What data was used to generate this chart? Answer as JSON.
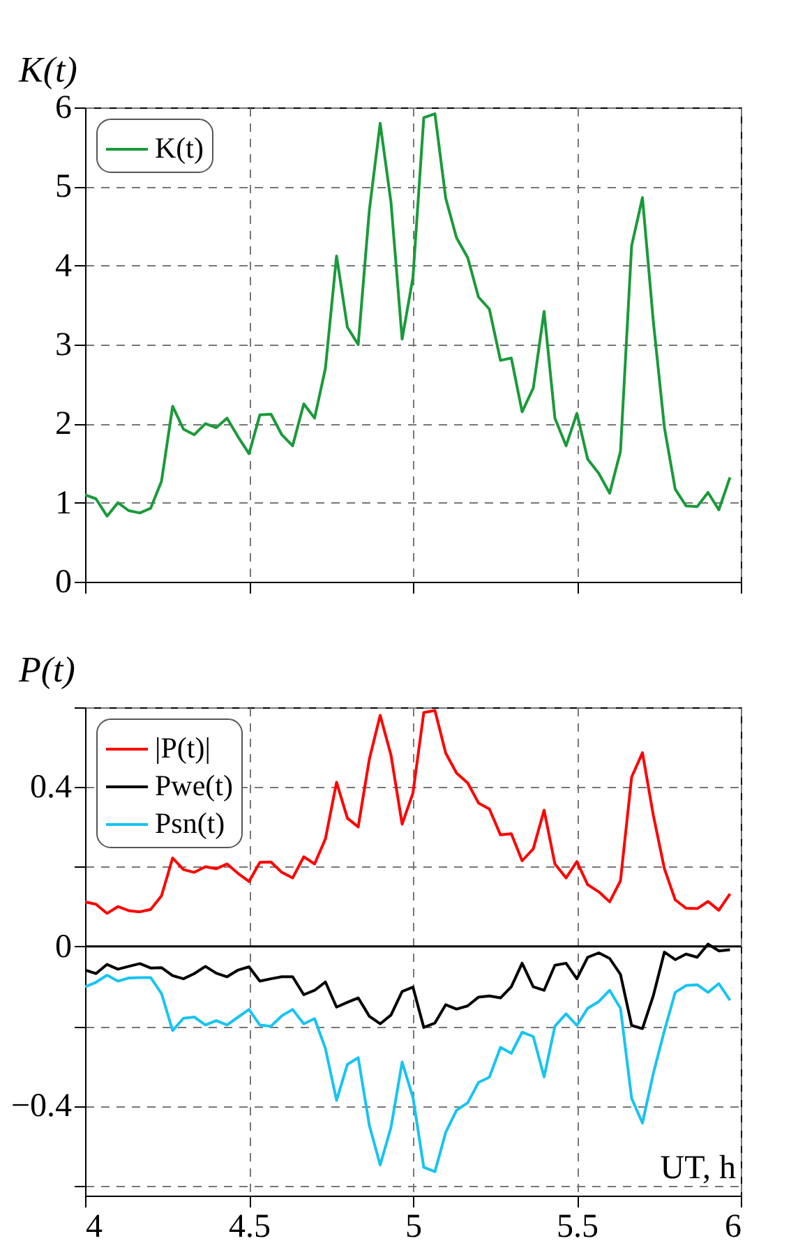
{
  "chart_data": [
    {
      "type": "line",
      "ylabel": "K(t)",
      "xlim": [
        4,
        6
      ],
      "xticks": [
        4,
        4.5,
        5,
        5.5,
        6
      ],
      "ylim": [
        0,
        6
      ],
      "yticks": [
        0,
        1,
        2,
        3,
        4,
        5,
        6
      ],
      "grid": true,
      "legend": "top left",
      "tick_labels": "y",
      "line_style": "solid",
      "x": [
        4,
        4.033,
        4.067,
        4.1,
        4.133,
        4.167,
        4.2,
        4.233,
        4.267,
        4.3,
        4.333,
        4.367,
        4.4,
        4.433,
        4.467,
        4.5,
        4.533,
        4.567,
        4.6,
        4.633,
        4.667,
        4.7,
        4.733,
        4.767,
        4.8,
        4.833,
        4.867,
        4.9,
        4.933,
        4.967,
        5,
        5.033,
        5.067,
        5.1,
        5.133,
        5.167,
        5.2,
        5.233,
        5.267,
        5.3,
        5.333,
        5.367,
        5.4,
        5.433,
        5.467,
        5.5,
        5.533,
        5.567,
        5.6,
        5.633,
        5.667,
        5.7,
        5.733,
        5.767,
        5.8,
        5.833,
        5.867,
        5.9,
        5.933,
        5.967
      ],
      "series": [
        {
          "name": "K(t)",
          "color": "#1a9a3a",
          "values": [
            1.1,
            1.05,
            0.83,
            1.0,
            0.9,
            0.87,
            0.93,
            1.27,
            2.22,
            1.93,
            1.86,
            2.0,
            1.95,
            2.07,
            1.83,
            1.62,
            2.11,
            2.12,
            1.86,
            1.72,
            2.25,
            2.07,
            2.7,
            4.12,
            3.22,
            3.0,
            4.7,
            5.8,
            4.8,
            3.07,
            3.85,
            5.87,
            5.92,
            4.85,
            4.35,
            4.1,
            3.6,
            3.45,
            2.8,
            2.83,
            2.15,
            2.45,
            3.42,
            2.07,
            1.72,
            2.13,
            1.55,
            1.37,
            1.12,
            1.65,
            4.25,
            4.86,
            3.3,
            1.95,
            1.17,
            0.96,
            0.95,
            1.13,
            0.91,
            1.32
          ]
        }
      ]
    },
    {
      "type": "line",
      "ylabel": "P(t)",
      "xlabel": "UT, h",
      "xlim": [
        4,
        6
      ],
      "xticks": [
        4,
        4.5,
        5,
        5.5,
        6
      ],
      "ylim": [
        -0.625,
        0.6
      ],
      "yticks": [
        {
          "value": 0.6,
          "label": null
        },
        0.4,
        {
          "value": 0.2,
          "label": null
        },
        0,
        {
          "value": -0.2,
          "label": null
        },
        -0.4,
        {
          "value": -0.6,
          "label": null
        }
      ],
      "grid": true,
      "legend": "top left",
      "line_style": "solid",
      "ref_lines": [
        {
          "axis": "y",
          "value": 0,
          "color": "#000000",
          "line_style": "solid"
        }
      ],
      "x": [
        4,
        4.033,
        4.067,
        4.1,
        4.133,
        4.167,
        4.2,
        4.233,
        4.267,
        4.3,
        4.333,
        4.367,
        4.4,
        4.433,
        4.467,
        4.5,
        4.533,
        4.567,
        4.6,
        4.633,
        4.667,
        4.7,
        4.733,
        4.767,
        4.8,
        4.833,
        4.867,
        4.9,
        4.933,
        4.967,
        5,
        5.033,
        5.067,
        5.1,
        5.133,
        5.167,
        5.2,
        5.233,
        5.267,
        5.3,
        5.333,
        5.367,
        5.4,
        5.433,
        5.467,
        5.5,
        5.533,
        5.567,
        5.6,
        5.633,
        5.667,
        5.7,
        5.733,
        5.767,
        5.8,
        5.833,
        5.867,
        5.9,
        5.933,
        5.967
      ],
      "series": [
        {
          "name": "|P(t)|",
          "color": "#ff0000",
          "values": [
            0.112,
            0.106,
            0.083,
            0.1,
            0.09,
            0.087,
            0.093,
            0.127,
            0.222,
            0.193,
            0.186,
            0.2,
            0.195,
            0.207,
            0.183,
            0.163,
            0.211,
            0.212,
            0.186,
            0.172,
            0.225,
            0.207,
            0.27,
            0.412,
            0.322,
            0.3,
            0.47,
            0.58,
            0.48,
            0.307,
            0.385,
            0.587,
            0.592,
            0.485,
            0.435,
            0.41,
            0.36,
            0.345,
            0.28,
            0.283,
            0.215,
            0.245,
            0.342,
            0.207,
            0.172,
            0.213,
            0.155,
            0.137,
            0.112,
            0.165,
            0.425,
            0.486,
            0.33,
            0.195,
            0.117,
            0.096,
            0.095,
            0.113,
            0.091,
            0.132
          ]
        },
        {
          "name": "Pwe(t)",
          "color": "#000000",
          "values": [
            -0.059,
            -0.068,
            -0.045,
            -0.057,
            -0.05,
            -0.043,
            -0.054,
            -0.053,
            -0.073,
            -0.081,
            -0.068,
            -0.05,
            -0.067,
            -0.076,
            -0.059,
            -0.051,
            -0.087,
            -0.081,
            -0.076,
            -0.076,
            -0.121,
            -0.11,
            -0.089,
            -0.152,
            -0.14,
            -0.129,
            -0.175,
            -0.194,
            -0.172,
            -0.113,
            -0.102,
            -0.203,
            -0.192,
            -0.146,
            -0.157,
            -0.149,
            -0.127,
            -0.124,
            -0.129,
            -0.101,
            -0.042,
            -0.101,
            -0.11,
            -0.047,
            -0.042,
            -0.081,
            -0.027,
            -0.016,
            -0.03,
            -0.07,
            -0.198,
            -0.206,
            -0.124,
            -0.014,
            -0.033,
            -0.019,
            -0.027,
            0.006,
            -0.011,
            -0.008
          ]
        },
        {
          "name": "Psn(t)",
          "color": "#18c4f0",
          "values": [
            -0.101,
            -0.09,
            -0.072,
            -0.087,
            -0.079,
            -0.078,
            -0.078,
            -0.118,
            -0.211,
            -0.18,
            -0.177,
            -0.197,
            -0.186,
            -0.197,
            -0.177,
            -0.158,
            -0.197,
            -0.2,
            -0.174,
            -0.158,
            -0.194,
            -0.181,
            -0.256,
            -0.386,
            -0.296,
            -0.279,
            -0.449,
            -0.548,
            -0.454,
            -0.29,
            -0.379,
            -0.554,
            -0.565,
            -0.466,
            -0.411,
            -0.392,
            -0.341,
            -0.328,
            -0.253,
            -0.268,
            -0.215,
            -0.226,
            -0.327,
            -0.2,
            -0.169,
            -0.198,
            -0.155,
            -0.138,
            -0.11,
            -0.155,
            -0.381,
            -0.443,
            -0.319,
            -0.211,
            -0.115,
            -0.098,
            -0.096,
            -0.115,
            -0.093,
            -0.135
          ]
        }
      ]
    }
  ]
}
